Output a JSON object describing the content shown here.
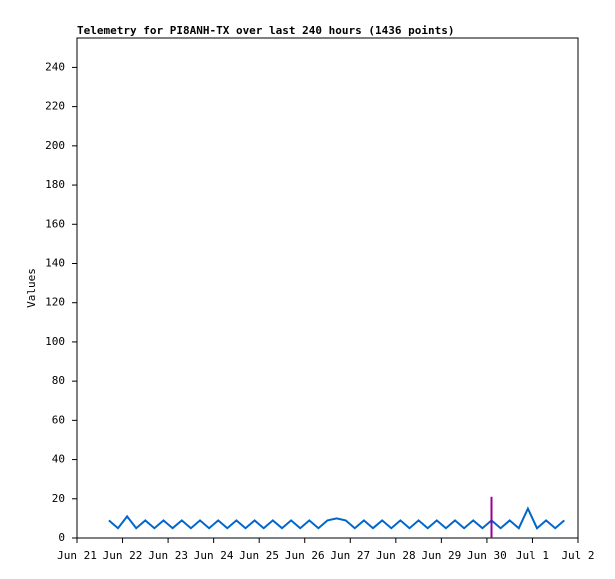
{
  "chart_data": {
    "type": "line",
    "title": "Telemetry for PI8ANH-TX over last 240 hours (1436 points)",
    "ylabel": "Values",
    "xlim": [
      0,
      11
    ],
    "xticks": [
      {
        "value": 0,
        "label": "Jun 21"
      },
      {
        "value": 1,
        "label": "Jun 22"
      },
      {
        "value": 2,
        "label": "Jun 23"
      },
      {
        "value": 3,
        "label": "Jun 24"
      },
      {
        "value": 4,
        "label": "Jun 25"
      },
      {
        "value": 5,
        "label": "Jun 26"
      },
      {
        "value": 6,
        "label": "Jun 27"
      },
      {
        "value": 7,
        "label": "Jun 28"
      },
      {
        "value": 8,
        "label": "Jun 29"
      },
      {
        "value": 9,
        "label": "Jun 30"
      },
      {
        "value": 10,
        "label": "Jul 1"
      },
      {
        "value": 11,
        "label": "Jul 2"
      }
    ],
    "ylim": [
      0,
      255
    ],
    "yticks": [
      0,
      20,
      40,
      60,
      80,
      100,
      120,
      140,
      160,
      180,
      200,
      220,
      240
    ],
    "series": [
      {
        "color": "#0066cc",
        "x": [
          0.7,
          0.9,
          1.1,
          1.3,
          1.5,
          1.7,
          1.9,
          2.1,
          2.3,
          2.5,
          2.7,
          2.9,
          3.1,
          3.3,
          3.5,
          3.7,
          3.9,
          4.1,
          4.3,
          4.5,
          4.7,
          4.9,
          5.1,
          5.3,
          5.5,
          5.7,
          5.9,
          6.1,
          6.3,
          6.5,
          6.7,
          6.9,
          7.1,
          7.3,
          7.5,
          7.7,
          7.9,
          8.1,
          8.3,
          8.5,
          8.7,
          8.9,
          9.1,
          9.3,
          9.5,
          9.7,
          9.9,
          10.1,
          10.3,
          10.5,
          10.7
        ],
        "values": [
          9,
          5,
          11,
          5,
          9,
          5,
          9,
          5,
          9,
          5,
          9,
          5,
          9,
          5,
          9,
          5,
          9,
          5,
          9,
          5,
          9,
          5,
          9,
          5,
          9,
          10,
          9,
          5,
          9,
          5,
          9,
          5,
          9,
          5,
          9,
          5,
          9,
          5,
          9,
          5,
          9,
          5,
          9,
          5,
          9,
          5,
          15,
          5,
          9,
          5,
          9
        ]
      },
      {
        "color": "#990099",
        "x": [
          9.1,
          9.1
        ],
        "values": [
          0,
          21
        ]
      }
    ]
  }
}
